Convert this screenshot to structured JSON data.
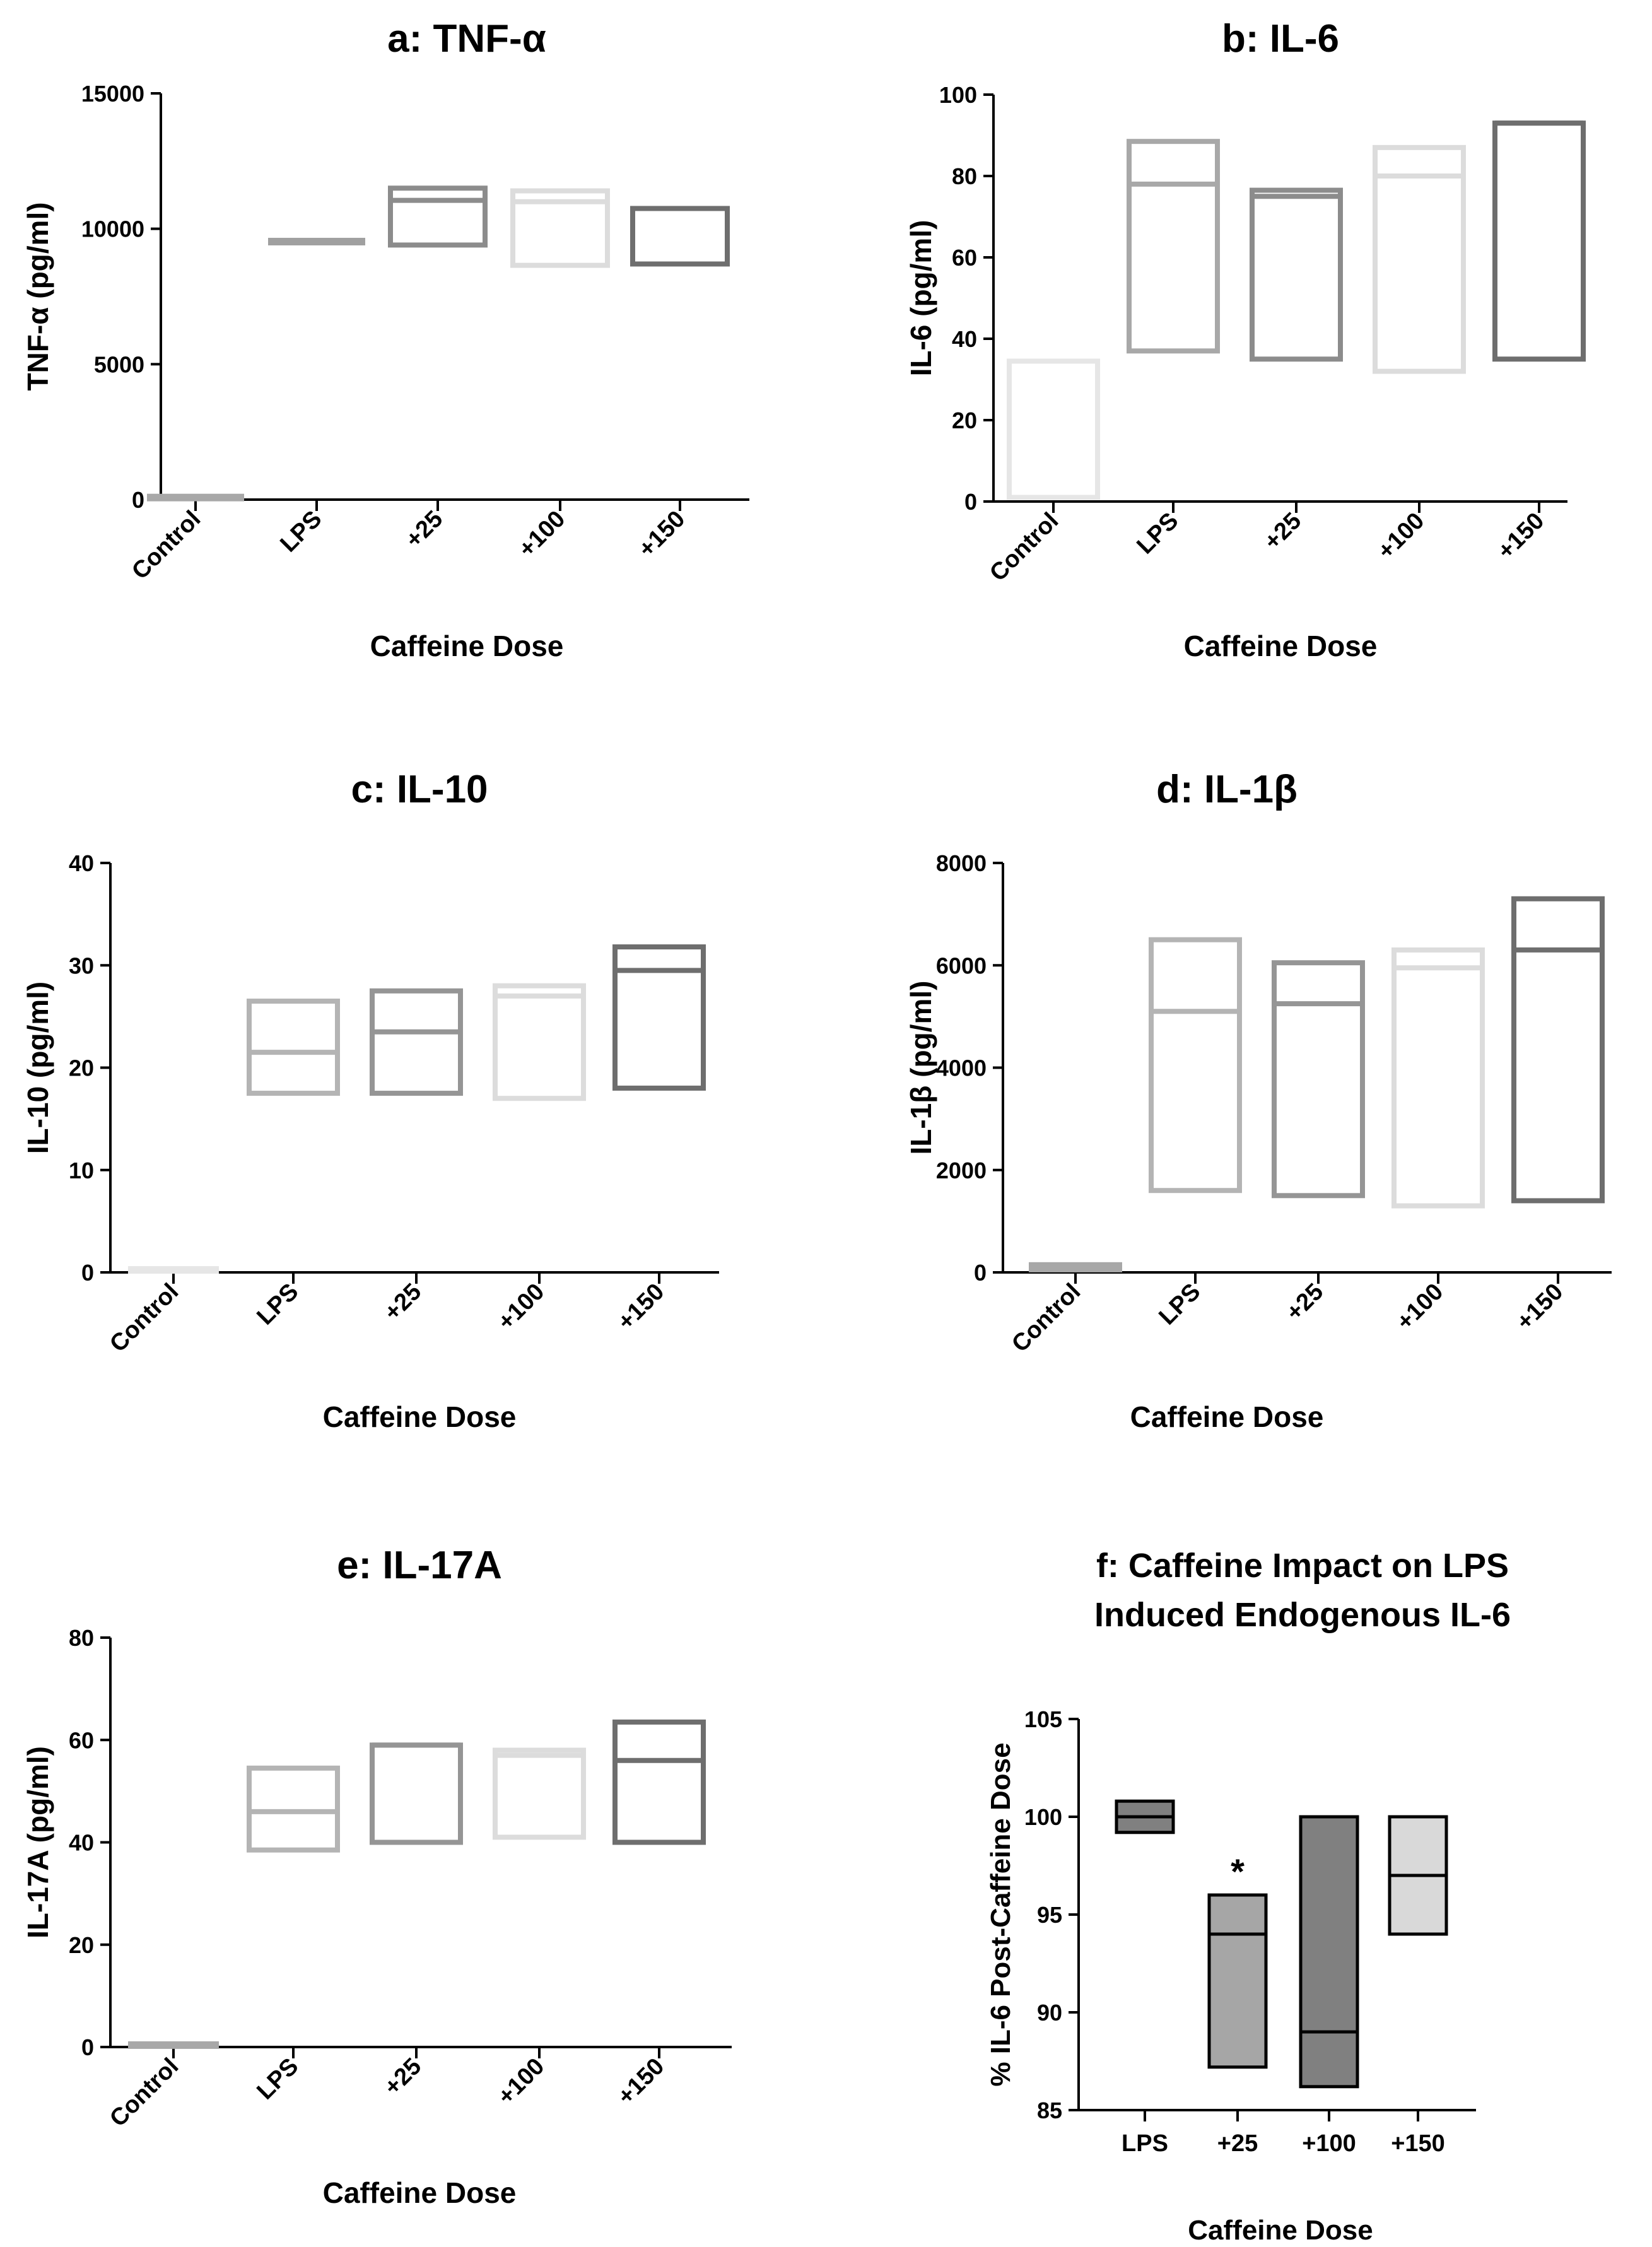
{
  "chart_data": [
    {
      "id": "a",
      "type": "box",
      "title": "a: TNF-α",
      "ylabel": "TNF-α (pg/ml)",
      "xlabel": "Caffeine Dose",
      "ylim": [
        0,
        15000
      ],
      "yticks": [
        0,
        5000,
        10000,
        15000
      ],
      "categories": [
        "Control",
        "LPS",
        "+25",
        "+100",
        "+150"
      ],
      "boxes": [
        {
          "low": 0,
          "median": 50,
          "high": 100,
          "color": "#a8a8a8"
        },
        {
          "low": 9450,
          "median": 9500,
          "high": 9550,
          "color": "#a0a0a0"
        },
        {
          "low": 9400,
          "median": 11050,
          "high": 11500,
          "color": "#8c8c8c"
        },
        {
          "low": 8650,
          "median": 11000,
          "high": 11400,
          "color": "#dcdcdc"
        },
        {
          "low": 8700,
          "median": 10750,
          "high": 10750,
          "color": "#6e6e6e"
        }
      ]
    },
    {
      "id": "b",
      "type": "box",
      "title": "b: IL-6",
      "ylabel": "IL-6 (pg/ml)",
      "xlabel": "Caffeine Dose",
      "ylim": [
        0,
        100
      ],
      "yticks": [
        0,
        20,
        40,
        60,
        80,
        100
      ],
      "categories": [
        "Control",
        "LPS",
        "+25",
        "+100",
        "+150"
      ],
      "boxes": [
        {
          "low": 1,
          "median": 1,
          "high": 34.5,
          "color": "#e6e6e6"
        },
        {
          "low": 37,
          "median": 78,
          "high": 88.5,
          "color": "#a8a8a8"
        },
        {
          "low": 35,
          "median": 75,
          "high": 76.5,
          "color": "#8c8c8c"
        },
        {
          "low": 32,
          "median": 80,
          "high": 87,
          "color": "#dcdcdc"
        },
        {
          "low": 35,
          "median": 93,
          "high": 93,
          "color": "#6e6e6e"
        }
      ]
    },
    {
      "id": "c",
      "type": "box",
      "title": "c: IL-10",
      "ylabel": "IL-10 (pg/ml)",
      "xlabel": "Caffeine Dose",
      "ylim": [
        0,
        40
      ],
      "yticks": [
        0,
        10,
        20,
        30,
        40
      ],
      "categories": [
        "Control",
        "LPS",
        "+25",
        "+100",
        "+150"
      ],
      "boxes": [
        {
          "low": 0.3,
          "median": 0.3,
          "high": 0.3,
          "color": "#e6e6e6"
        },
        {
          "low": 17.5,
          "median": 21.5,
          "high": 26.5,
          "color": "#b4b4b4"
        },
        {
          "low": 17.5,
          "median": 23.5,
          "high": 27.5,
          "color": "#959595"
        },
        {
          "low": 17,
          "median": 27,
          "high": 28,
          "color": "#dcdcdc"
        },
        {
          "low": 18,
          "median": 29.5,
          "high": 31.8,
          "color": "#6e6e6e"
        }
      ]
    },
    {
      "id": "d",
      "type": "box",
      "title": "d: IL-1β",
      "ylabel": "IL-1β (pg/ml)",
      "xlabel": "Caffeine Dose",
      "ylim": [
        0,
        8000
      ],
      "yticks": [
        0,
        2000,
        4000,
        6000,
        8000
      ],
      "categories": [
        "Control",
        "LPS",
        "+25",
        "+100",
        "+150"
      ],
      "boxes": [
        {
          "low": 50,
          "median": 100,
          "high": 150,
          "color": "#a8a8a8"
        },
        {
          "low": 1600,
          "median": 5100,
          "high": 6500,
          "color": "#b4b4b4"
        },
        {
          "low": 1500,
          "median": 5250,
          "high": 6050,
          "color": "#959595"
        },
        {
          "low": 1300,
          "median": 5950,
          "high": 6300,
          "color": "#dcdcdc"
        },
        {
          "low": 1400,
          "median": 6300,
          "high": 7300,
          "color": "#6e6e6e"
        }
      ]
    },
    {
      "id": "e",
      "type": "box",
      "title": "e: IL-17A",
      "ylabel": "IL-17A (pg/ml)",
      "xlabel": "Caffeine  Dose",
      "ylim": [
        0,
        80
      ],
      "yticks": [
        0,
        20,
        40,
        60,
        80
      ],
      "categories": [
        "Control",
        "LPS",
        "+25",
        "+100",
        "+150"
      ],
      "boxes": [
        {
          "low": 0.5,
          "median": 0.5,
          "high": 0.5,
          "color": "#a8a8a8"
        },
        {
          "low": 38.5,
          "median": 46,
          "high": 54.5,
          "color": "#b4b4b4"
        },
        {
          "low": 40,
          "median": 59,
          "high": 59,
          "color": "#959595"
        },
        {
          "low": 41,
          "median": 57,
          "high": 58,
          "color": "#dcdcdc"
        },
        {
          "low": 40,
          "median": 56,
          "high": 63.5,
          "color": "#6e6e6e"
        }
      ]
    },
    {
      "id": "f",
      "type": "box",
      "title": "f: Caffeine Impact on LPS",
      "title2": "Induced Endogenous IL-6",
      "ylabel": "% IL-6 Post-Caffeine Dose",
      "xlabel": "Caffeine Dose",
      "ylim": [
        85,
        105
      ],
      "yticks": [
        85,
        90,
        95,
        100,
        105
      ],
      "categories": [
        "LPS",
        "+25",
        "+100",
        "+150"
      ],
      "annotation": "*",
      "boxes": [
        {
          "low": 99.2,
          "median": 100,
          "high": 100.8,
          "fill": "#808080"
        },
        {
          "low": 87.2,
          "median": 94,
          "high": 96,
          "fill": "#a6a6a6"
        },
        {
          "low": 86.2,
          "median": 89,
          "high": 100,
          "fill": "#808080"
        },
        {
          "low": 94,
          "median": 97,
          "high": 100,
          "fill": "#d9d9d9"
        }
      ]
    }
  ]
}
